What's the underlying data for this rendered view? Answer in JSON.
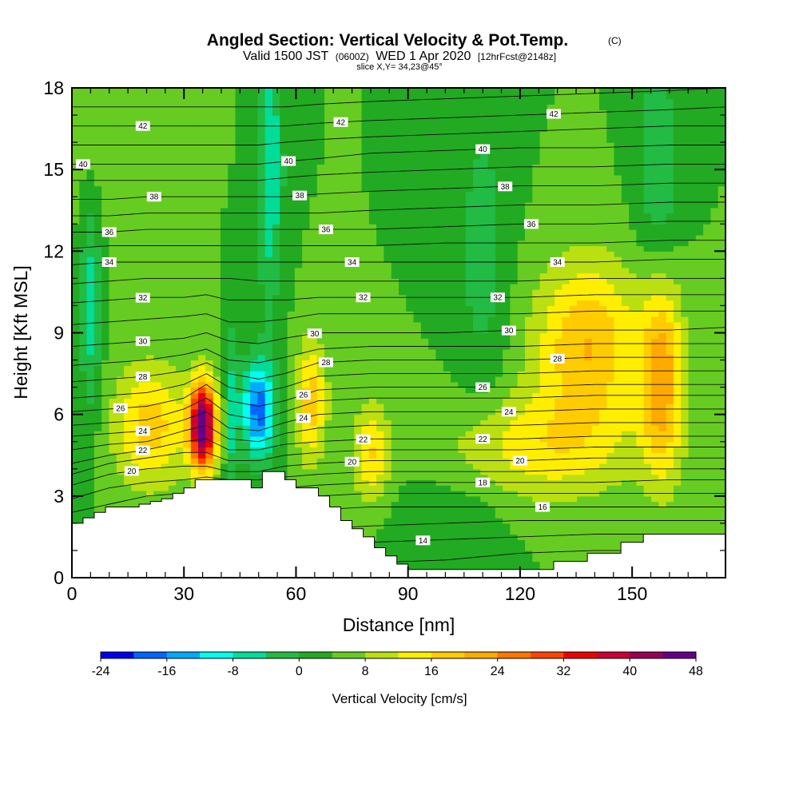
{
  "chart_data": {
    "type": "heatmap",
    "title": "Angled Section: Vertical Velocity & Pot.Temp.",
    "title_units": "(C)",
    "subtitle_parts": [
      "Valid 1500 JST",
      "(0600Z)",
      "WED 1 Apr 2020",
      "[12hrFcst@2148z]"
    ],
    "slice_label": "slice X,Y= 34,23@45°",
    "xlabel": "Distance [nm]",
    "ylabel": "Height [Kft MSL]",
    "xlim": [
      0,
      175
    ],
    "ylim": [
      0,
      18
    ],
    "x_ticks": [
      0,
      30,
      60,
      90,
      120,
      150
    ],
    "y_ticks": [
      0,
      3,
      6,
      9,
      12,
      15,
      18
    ],
    "colorbar": {
      "title": "Vertical Velocity [cm/s]",
      "levels": [
        -24,
        -20,
        -16,
        -12,
        -8,
        -4,
        0,
        4,
        8,
        12,
        16,
        20,
        24,
        28,
        32,
        36,
        40,
        44,
        48
      ],
      "tick_labels": [
        -24,
        -16,
        -8,
        0,
        8,
        16,
        24,
        32,
        40,
        48
      ],
      "colors": [
        "#0000ee",
        "#0066ff",
        "#00aaff",
        "#00ffee",
        "#00dd99",
        "#22bb44",
        "#22aa22",
        "#66cc22",
        "#bbe011",
        "#ffee00",
        "#ffcc00",
        "#ffaa00",
        "#ff7700",
        "#ff4400",
        "#ee0000",
        "#cc0033",
        "#990055",
        "#660088"
      ]
    },
    "background_wind_level": 4,
    "velocity_features": [
      {
        "x": 35,
        "y": 5.6,
        "sx": 2.4,
        "sy": 1.1,
        "value": 46
      },
      {
        "x": 21,
        "y": 5.6,
        "sx": 7,
        "sy": 1.6,
        "value": 14
      },
      {
        "x": 50,
        "y": 6.2,
        "sx": 3.2,
        "sy": 1.3,
        "value": -22
      },
      {
        "x": 53,
        "y": 15,
        "sx": 2.5,
        "sy": 3.5,
        "value": -12
      },
      {
        "x": 5,
        "y": 10,
        "sx": 2,
        "sy": 3,
        "value": -10
      },
      {
        "x": 64,
        "y": 6.5,
        "sx": 3,
        "sy": 1.6,
        "value": 14
      },
      {
        "x": 80,
        "y": 4.6,
        "sx": 3.5,
        "sy": 1.3,
        "value": 12
      },
      {
        "x": 138,
        "y": 8.6,
        "sx": 10,
        "sy": 2.2,
        "value": 16
      },
      {
        "x": 158,
        "y": 7.4,
        "sx": 4,
        "sy": 2.6,
        "value": 18
      },
      {
        "x": 125,
        "y": 4.8,
        "sx": 18,
        "sy": 1.4,
        "value": 10
      },
      {
        "x": 110,
        "y": 12,
        "sx": 5,
        "sy": 4,
        "value": -6
      },
      {
        "x": 157,
        "y": 15,
        "sx": 4,
        "sy": 3,
        "value": -8
      },
      {
        "x": 10,
        "y": 17,
        "sx": 10,
        "sy": 2.5,
        "value": 4
      },
      {
        "x": 43,
        "y": 6,
        "sx": 1.2,
        "sy": 2.5,
        "value": -9
      },
      {
        "x": 100,
        "y": 2,
        "sx": 10,
        "sy": 1.3,
        "value": -4
      }
    ],
    "terrain_profile": {
      "x": [
        0,
        3,
        3,
        6,
        6,
        9,
        9,
        18,
        18,
        21,
        21,
        24,
        24,
        27,
        27,
        30,
        30,
        33,
        33,
        36,
        36,
        48,
        48,
        51,
        51,
        57,
        57,
        60,
        60,
        66,
        66,
        69,
        69,
        72,
        72,
        75,
        75,
        78,
        78,
        81,
        81,
        84,
        84,
        87,
        87,
        90,
        90,
        93,
        93,
        129,
        129,
        138,
        138,
        147,
        147,
        153,
        153,
        162,
        162,
        168,
        168,
        175
      ],
      "y": [
        2.0,
        2.0,
        2.2,
        2.2,
        2.4,
        2.4,
        2.6,
        2.6,
        2.7,
        2.7,
        2.8,
        2.8,
        2.9,
        2.9,
        3.1,
        3.1,
        3.3,
        3.3,
        3.6,
        3.6,
        3.6,
        3.6,
        3.3,
        3.3,
        3.9,
        3.9,
        3.6,
        3.6,
        3.3,
        3.3,
        3.0,
        3.0,
        2.6,
        2.6,
        2.1,
        2.1,
        1.8,
        1.8,
        1.5,
        1.5,
        1.1,
        1.1,
        0.8,
        0.8,
        0.5,
        0.5,
        0.3,
        0.3,
        0.3,
        0.3,
        0.6,
        0.6,
        0.9,
        0.9,
        1.3,
        1.3,
        1.6,
        1.6,
        1.6,
        1.6,
        1.6,
        1.6
      ]
    },
    "potential_temperature": {
      "levels": [
        13,
        14,
        15,
        16,
        17,
        18,
        19,
        20,
        21,
        22,
        23,
        24,
        25,
        26,
        27,
        28,
        29,
        30,
        31,
        32,
        33,
        34,
        35,
        36,
        37,
        38,
        39,
        40,
        41,
        42,
        43
      ],
      "control_x": [
        0,
        10,
        20,
        30,
        36,
        42,
        50,
        57,
        66,
        80,
        100,
        120,
        140,
        160,
        175
      ],
      "heights": {
        "13": [
          0.1,
          0.1,
          0.1,
          0.1,
          0.1,
          0.1,
          0.1,
          0.2,
          0.3,
          0.55,
          0.65,
          0.9,
          1.0,
          1.0,
          1.0
        ],
        "14": [
          0.3,
          0.4,
          0.6,
          0.8,
          1.0,
          1.0,
          1.0,
          1.0,
          1.1,
          1.3,
          1.4,
          1.5,
          1.6,
          1.6,
          1.6
        ],
        "15": [
          0.7,
          0.9,
          1.1,
          1.3,
          1.5,
          1.6,
          1.6,
          1.7,
          1.8,
          1.9,
          2.0,
          2.1,
          2.1,
          2.1,
          2.1
        ],
        "16": [
          1.3,
          1.5,
          1.7,
          2.0,
          2.3,
          2.3,
          2.3,
          2.4,
          2.5,
          2.6,
          2.6,
          2.6,
          2.6,
          2.6,
          2.6
        ],
        "17": [
          1.9,
          2.1,
          2.4,
          2.6,
          2.9,
          2.9,
          2.9,
          3.0,
          3.0,
          3.1,
          3.1,
          3.1,
          3.1,
          3.1,
          3.1
        ],
        "18": [
          2.4,
          2.7,
          3.0,
          3.1,
          3.3,
          3.2,
          3.2,
          3.3,
          3.4,
          3.5,
          3.5,
          3.5,
          3.5,
          3.6,
          3.6
        ],
        "19": [
          2.9,
          3.3,
          3.5,
          3.6,
          3.7,
          3.6,
          3.6,
          3.7,
          3.8,
          3.9,
          3.9,
          3.9,
          4.0,
          4.0,
          4.0
        ],
        "20": [
          3.4,
          3.8,
          4.0,
          4.1,
          4.1,
          3.9,
          3.9,
          4.1,
          4.2,
          4.3,
          4.3,
          4.3,
          4.4,
          4.4,
          4.4
        ],
        "21": [
          3.8,
          4.2,
          4.4,
          4.6,
          4.6,
          4.3,
          4.3,
          4.5,
          4.6,
          4.7,
          4.7,
          4.7,
          4.8,
          4.8,
          4.8
        ],
        "22": [
          4.2,
          4.5,
          4.7,
          5.0,
          5.1,
          4.7,
          4.7,
          4.9,
          5.0,
          5.1,
          5.1,
          5.1,
          5.2,
          5.2,
          5.2
        ],
        "23": [
          4.7,
          4.9,
          5.0,
          5.4,
          5.6,
          5.1,
          5.0,
          5.3,
          5.5,
          5.6,
          5.6,
          5.6,
          5.7,
          5.7,
          5.7
        ],
        "24": [
          5.2,
          5.3,
          5.4,
          5.8,
          6.1,
          5.5,
          5.4,
          5.7,
          6.0,
          6.1,
          6.1,
          6.1,
          6.2,
          6.2,
          6.2
        ],
        "25": [
          5.6,
          5.7,
          5.8,
          6.2,
          6.6,
          6.0,
          5.8,
          6.1,
          6.5,
          6.6,
          6.6,
          6.6,
          6.7,
          6.7,
          6.7
        ],
        "26": [
          6.1,
          6.2,
          6.3,
          6.6,
          7.1,
          6.5,
          6.3,
          6.5,
          6.9,
          7.0,
          7.0,
          7.0,
          7.1,
          7.1,
          7.1
        ],
        "27": [
          6.6,
          6.7,
          6.8,
          7.1,
          7.5,
          7.0,
          6.8,
          7.0,
          7.4,
          7.5,
          7.5,
          7.5,
          7.6,
          7.6,
          7.6
        ],
        "28": [
          7.2,
          7.3,
          7.4,
          7.6,
          7.9,
          7.5,
          7.3,
          7.5,
          7.9,
          8.0,
          8.0,
          8.0,
          8.1,
          8.1,
          8.1
        ],
        "29": [
          7.8,
          7.9,
          8.0,
          8.2,
          8.4,
          8.0,
          7.9,
          8.1,
          8.4,
          8.5,
          8.5,
          8.5,
          8.6,
          8.6,
          8.6
        ],
        "30": [
          8.5,
          8.6,
          8.7,
          8.8,
          9.0,
          8.7,
          8.6,
          8.8,
          9.0,
          9.0,
          9.0,
          9.1,
          9.1,
          9.1,
          9.2
        ],
        "31": [
          9.3,
          9.4,
          9.5,
          9.6,
          9.7,
          9.4,
          9.4,
          9.5,
          9.7,
          9.7,
          9.7,
          9.7,
          9.8,
          9.8,
          9.8
        ],
        "32": [
          10.1,
          10.2,
          10.3,
          10.3,
          10.4,
          10.2,
          10.2,
          10.2,
          10.3,
          10.3,
          10.3,
          10.3,
          10.4,
          10.4,
          10.4
        ],
        "33": [
          10.8,
          10.9,
          11.0,
          11.0,
          11.0,
          11.0,
          10.9,
          10.9,
          10.9,
          10.9,
          10.9,
          10.9,
          11.0,
          11.0,
          11.0
        ],
        "34": [
          11.5,
          11.6,
          11.6,
          11.6,
          11.6,
          11.6,
          11.6,
          11.6,
          11.6,
          11.6,
          11.6,
          11.6,
          11.6,
          11.7,
          11.7
        ],
        "35": [
          12.1,
          12.2,
          12.2,
          12.2,
          12.2,
          12.2,
          12.2,
          12.2,
          12.2,
          12.2,
          12.3,
          12.3,
          12.3,
          12.4,
          12.4
        ],
        "36": [
          12.7,
          12.7,
          12.8,
          12.8,
          12.8,
          12.8,
          12.8,
          12.8,
          12.8,
          12.8,
          12.9,
          13.0,
          13.0,
          13.1,
          13.1
        ],
        "37": [
          13.3,
          13.3,
          13.4,
          13.4,
          13.4,
          13.4,
          13.4,
          13.4,
          13.4,
          13.5,
          13.6,
          13.7,
          13.7,
          13.8,
          13.8
        ],
        "38": [
          13.9,
          13.9,
          14.0,
          14.0,
          14.0,
          14.0,
          14.0,
          14.0,
          14.1,
          14.2,
          14.3,
          14.4,
          14.4,
          14.5,
          14.5
        ],
        "39": [
          14.6,
          14.6,
          14.6,
          14.6,
          14.6,
          14.6,
          14.6,
          14.7,
          14.8,
          14.9,
          15.0,
          15.1,
          15.1,
          15.2,
          15.2
        ],
        "40": [
          15.2,
          15.2,
          15.2,
          15.2,
          15.2,
          15.2,
          15.2,
          15.3,
          15.4,
          15.6,
          15.7,
          15.8,
          15.8,
          15.9,
          15.9
        ],
        "41": [
          15.9,
          15.9,
          15.9,
          15.9,
          15.9,
          15.9,
          15.9,
          16.0,
          16.1,
          16.2,
          16.3,
          16.4,
          16.5,
          16.6,
          16.6
        ],
        "42": [
          16.6,
          16.6,
          16.6,
          16.6,
          16.6,
          16.6,
          16.6,
          16.6,
          16.7,
          16.8,
          16.9,
          17.0,
          17.1,
          17.2,
          17.3
        ],
        "43": [
          17.3,
          17.3,
          17.3,
          17.3,
          17.3,
          17.3,
          17.3,
          17.3,
          17.4,
          17.5,
          17.6,
          17.7,
          17.8,
          17.9,
          18.0
        ]
      },
      "labels": [
        {
          "level": 42,
          "x": 19,
          "text": "42"
        },
        {
          "level": 42,
          "x": 72,
          "text": "42"
        },
        {
          "level": 42,
          "x": 129,
          "text": "42"
        },
        {
          "level": 40,
          "x": 3,
          "text": "40"
        },
        {
          "level": 40,
          "x": 58,
          "text": "40"
        },
        {
          "level": 40,
          "x": 110,
          "text": "40"
        },
        {
          "level": 38,
          "x": 22,
          "text": "38"
        },
        {
          "level": 38,
          "x": 61,
          "text": "38"
        },
        {
          "level": 38,
          "x": 116,
          "text": "38"
        },
        {
          "level": 36,
          "x": 10,
          "text": "36"
        },
        {
          "level": 36,
          "x": 68,
          "text": "36"
        },
        {
          "level": 36,
          "x": 123,
          "text": "36"
        },
        {
          "level": 34,
          "x": 10,
          "text": "34"
        },
        {
          "level": 34,
          "x": 75,
          "text": "34"
        },
        {
          "level": 34,
          "x": 130,
          "text": "34"
        },
        {
          "level": 32,
          "x": 19,
          "text": "32"
        },
        {
          "level": 32,
          "x": 78,
          "text": "32"
        },
        {
          "level": 32,
          "x": 114,
          "text": "32"
        },
        {
          "level": 30,
          "x": 19,
          "text": "30"
        },
        {
          "level": 30,
          "x": 65,
          "text": "30"
        },
        {
          "level": 30,
          "x": 117,
          "text": "30"
        },
        {
          "level": 28,
          "x": 19,
          "text": "28"
        },
        {
          "level": 28,
          "x": 68,
          "text": "28"
        },
        {
          "level": 28,
          "x": 130,
          "text": "28"
        },
        {
          "level": 26,
          "x": 13,
          "text": "26"
        },
        {
          "level": 26,
          "x": 62,
          "text": "26"
        },
        {
          "level": 26,
          "x": 110,
          "text": "26"
        },
        {
          "level": 24,
          "x": 19,
          "text": "24"
        },
        {
          "level": 24,
          "x": 62,
          "text": "24"
        },
        {
          "level": 24,
          "x": 117,
          "text": "24"
        },
        {
          "level": 22,
          "x": 19,
          "text": "22"
        },
        {
          "level": 22,
          "x": 78,
          "text": "22"
        },
        {
          "level": 22,
          "x": 110,
          "text": "22"
        },
        {
          "level": 20,
          "x": 16,
          "text": "20"
        },
        {
          "level": 20,
          "x": 75,
          "text": "20"
        },
        {
          "level": 20,
          "x": 120,
          "text": "20"
        },
        {
          "level": 18,
          "x": 110,
          "text": "18"
        },
        {
          "level": 16,
          "x": 126,
          "text": "16"
        },
        {
          "level": 14,
          "x": 94,
          "text": "14"
        }
      ]
    }
  }
}
